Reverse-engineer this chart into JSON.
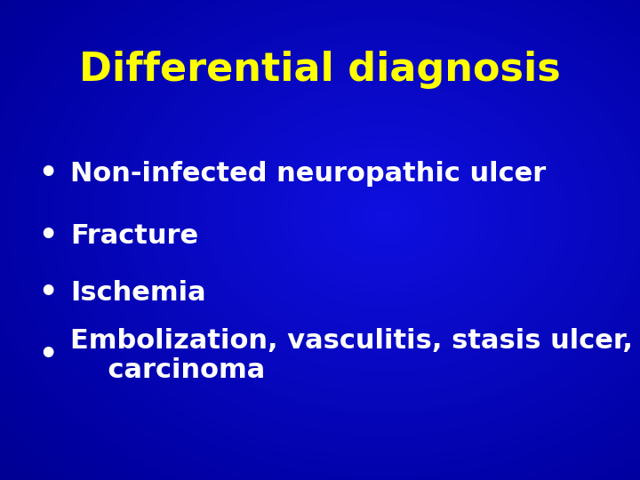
{
  "title": "Differential diagnosis",
  "title_color": "#FFFF00",
  "title_fontsize": 32,
  "title_bold": true,
  "title_italic": false,
  "bullet_items": [
    "Non-infected neuropathic ulcer",
    "Fracture",
    "Ischemia",
    "Embolization, vasculitis, stasis ulcer,\n    carcinoma"
  ],
  "bullet_color": "#FFFFFF",
  "bullet_fontsize": 22,
  "bullet_char": "•",
  "bg_dark": "#00008B",
  "bg_mid": "#0000CC",
  "bg_bright": "#2244DD",
  "fig_width": 7.2,
  "fig_height": 5.4,
  "dpi": 100
}
